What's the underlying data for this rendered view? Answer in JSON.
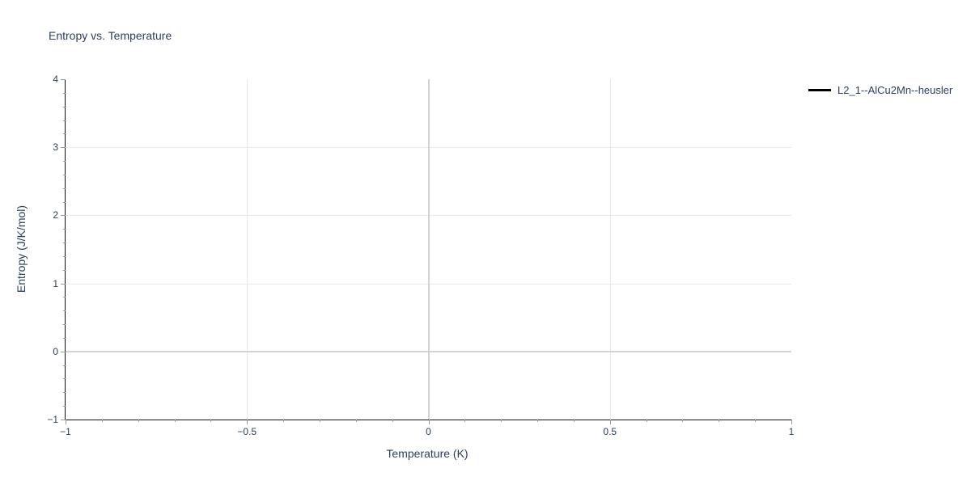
{
  "chart_data": {
    "type": "line",
    "title": "Entropy vs. Temperature",
    "xlabel": "Temperature (K)",
    "ylabel": "Entropy (J/K/mol)",
    "xlim": [
      -1,
      1
    ],
    "ylim": [
      -1,
      4
    ],
    "x_major_ticks": [
      -1,
      -0.5,
      0,
      0.5,
      1
    ],
    "x_tick_labels": [
      "−1",
      "−0.5",
      "0",
      "0.5",
      "1"
    ],
    "y_major_ticks": [
      -1,
      0,
      1,
      2,
      3,
      4
    ],
    "y_tick_labels": [
      "−1",
      "0",
      "1",
      "2",
      "3",
      "4"
    ],
    "x_minor_tick_step": 0.1,
    "y_minor_tick_step": 0.2,
    "grid": {
      "grid_on": true,
      "x_lines": [
        -0.5,
        0.5
      ],
      "y_lines": [
        1,
        2,
        3
      ],
      "x_zeroline": 0,
      "y_zeroline": 0
    },
    "series": [
      {
        "name": "L2_1--AlCu2Mn--heusler",
        "color": "#000000",
        "line_width": 3,
        "x": [],
        "y": []
      }
    ],
    "legend_position": "top-right-outside",
    "colors": {
      "font": "#2a3f5f",
      "gridline": "#e9e9e9",
      "zeroline": "#d3d3d3",
      "axis_line": "#111111",
      "tick": "#999999",
      "background": "#ffffff"
    }
  }
}
